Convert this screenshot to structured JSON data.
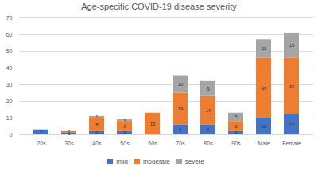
{
  "chart_data": {
    "type": "bar",
    "title": "Age-specific COVID-19 disease severity",
    "categories": [
      "20s",
      "30s",
      "40s",
      "50s",
      "60s",
      "70s",
      "80s",
      "90s",
      "Male",
      "Female"
    ],
    "series": [
      {
        "name": "mild",
        "color": "#4472c4",
        "values": [
          3,
          1,
          2,
          2,
          0,
          6,
          6,
          2,
          10,
          12
        ]
      },
      {
        "name": "moderate",
        "color": "#ed7d31",
        "values": [
          0,
          1,
          8,
          6,
          13,
          19,
          17,
          6,
          36,
          34
        ]
      },
      {
        "name": "severe",
        "color": "#a5a5a5",
        "values": [
          0,
          0,
          1,
          1,
          0,
          10,
          9,
          5,
          11,
          15
        ]
      }
    ],
    "ylim": [
      0,
      70
    ],
    "yticks": [
      0,
      10,
      20,
      30,
      40,
      50,
      60,
      70
    ],
    "grid": true,
    "stacked": true,
    "data_labels": true,
    "legend": "bottom"
  }
}
